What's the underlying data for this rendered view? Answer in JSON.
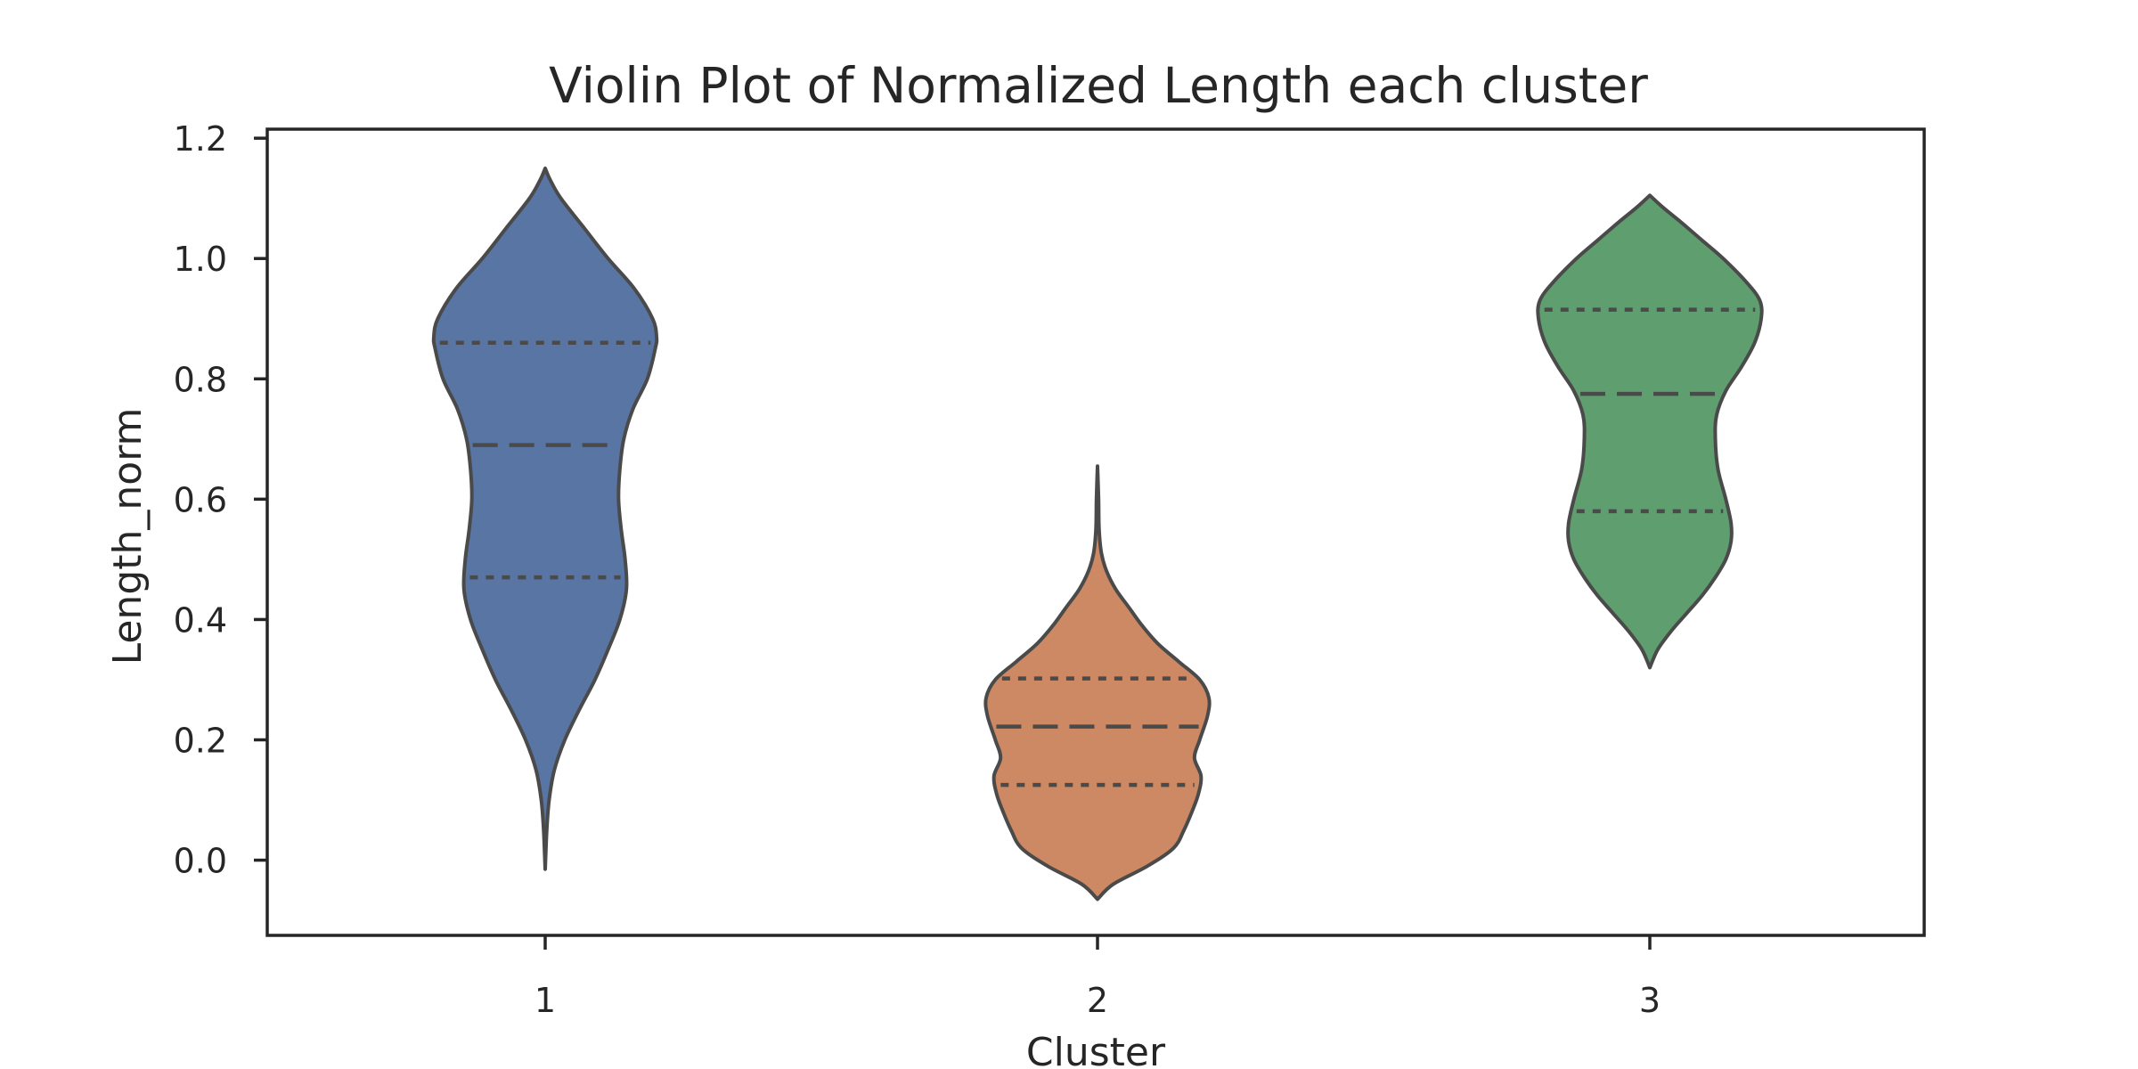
{
  "chart_data": {
    "type": "violin",
    "title": "Violin Plot of Normalized Length each cluster",
    "xlabel": "Cluster",
    "ylabel": "Length_norm",
    "ylim": [
      -0.125,
      1.215
    ],
    "yticks": [
      "0.0",
      "0.2",
      "0.4",
      "0.6",
      "0.8",
      "1.0",
      "1.2"
    ],
    "grid": false,
    "categories": [
      "1",
      "2",
      "3"
    ],
    "series": [
      {
        "category": "1",
        "color": "#5875a4",
        "min": -0.015,
        "max": 1.15,
        "quartiles": [
          0.47,
          0.69,
          0.86
        ],
        "density": [
          [
            -0.015,
            0.0
          ],
          [
            0.05,
            0.006
          ],
          [
            0.1,
            0.015
          ],
          [
            0.15,
            0.035
          ],
          [
            0.2,
            0.075
          ],
          [
            0.25,
            0.13
          ],
          [
            0.3,
            0.19
          ],
          [
            0.35,
            0.24
          ],
          [
            0.4,
            0.285
          ],
          [
            0.45,
            0.31
          ],
          [
            0.5,
            0.305
          ],
          [
            0.55,
            0.29
          ],
          [
            0.6,
            0.28
          ],
          [
            0.65,
            0.285
          ],
          [
            0.7,
            0.3
          ],
          [
            0.75,
            0.335
          ],
          [
            0.8,
            0.39
          ],
          [
            0.85,
            0.42
          ],
          [
            0.87,
            0.425
          ],
          [
            0.9,
            0.41
          ],
          [
            0.95,
            0.34
          ],
          [
            1.0,
            0.24
          ],
          [
            1.05,
            0.15
          ],
          [
            1.1,
            0.06
          ],
          [
            1.13,
            0.02
          ],
          [
            1.15,
            0.0
          ]
        ]
      },
      {
        "category": "2",
        "color": "#cc8963",
        "min": -0.065,
        "max": 0.655,
        "quartiles": [
          0.125,
          0.222,
          0.302
        ],
        "density": [
          [
            -0.065,
            0.0
          ],
          [
            -0.04,
            0.06
          ],
          [
            -0.01,
            0.19
          ],
          [
            0.02,
            0.29
          ],
          [
            0.05,
            0.33
          ],
          [
            0.08,
            0.36
          ],
          [
            0.11,
            0.385
          ],
          [
            0.14,
            0.395
          ],
          [
            0.17,
            0.37
          ],
          [
            0.2,
            0.39
          ],
          [
            0.24,
            0.42
          ],
          [
            0.27,
            0.425
          ],
          [
            0.3,
            0.39
          ],
          [
            0.33,
            0.31
          ],
          [
            0.36,
            0.23
          ],
          [
            0.39,
            0.17
          ],
          [
            0.42,
            0.12
          ],
          [
            0.45,
            0.07
          ],
          [
            0.48,
            0.035
          ],
          [
            0.51,
            0.015
          ],
          [
            0.55,
            0.006
          ],
          [
            0.6,
            0.004
          ],
          [
            0.655,
            0.0
          ]
        ]
      },
      {
        "category": "3",
        "color": "#5f9e6e",
        "min": 0.32,
        "max": 1.105,
        "quartiles": [
          0.58,
          0.775,
          0.915
        ],
        "density": [
          [
            0.32,
            0.0
          ],
          [
            0.35,
            0.03
          ],
          [
            0.38,
            0.08
          ],
          [
            0.41,
            0.14
          ],
          [
            0.44,
            0.2
          ],
          [
            0.47,
            0.25
          ],
          [
            0.5,
            0.29
          ],
          [
            0.53,
            0.31
          ],
          [
            0.56,
            0.31
          ],
          [
            0.6,
            0.29
          ],
          [
            0.65,
            0.26
          ],
          [
            0.7,
            0.25
          ],
          [
            0.74,
            0.255
          ],
          [
            0.78,
            0.29
          ],
          [
            0.82,
            0.35
          ],
          [
            0.86,
            0.4
          ],
          [
            0.9,
            0.425
          ],
          [
            0.93,
            0.42
          ],
          [
            0.96,
            0.37
          ],
          [
            1.0,
            0.28
          ],
          [
            1.03,
            0.2
          ],
          [
            1.06,
            0.12
          ],
          [
            1.085,
            0.05
          ],
          [
            1.105,
            0.0
          ]
        ]
      }
    ]
  }
}
